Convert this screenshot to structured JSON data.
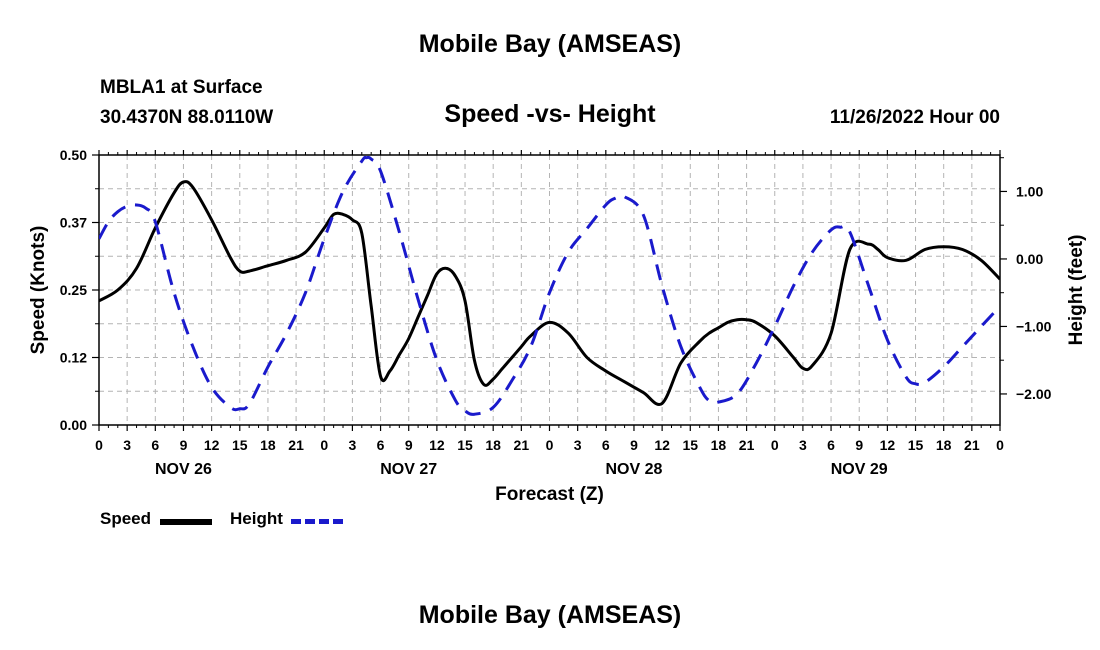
{
  "header": {
    "title_top": "Mobile Bay (AMSEAS)",
    "station": "MBLA1 at Surface",
    "coords": "30.4370N  88.0110W",
    "subtitle": "Speed -vs- Height",
    "datetime": "11/26/2022 Hour 00",
    "title_bottom": "Mobile Bay (AMSEAS)"
  },
  "legend": {
    "speed_label": "Speed",
    "height_label": "Height"
  },
  "colors": {
    "speed": "#000000",
    "height": "#1a1acc",
    "grid": "#b4b4b4"
  },
  "chart_data": {
    "type": "line",
    "title": "Speed -vs- Height",
    "xlabel": "Forecast (Z)",
    "ylabel": "Speed (Knots)",
    "y2label": "Height (feet)",
    "xlim": [
      0,
      96
    ],
    "ylim": [
      0,
      0.5
    ],
    "y2lim": [
      -2.46,
      1.54
    ],
    "x_ticks": [
      0,
      3,
      6,
      9,
      12,
      15,
      18,
      21,
      24,
      27,
      30,
      33,
      36,
      39,
      42,
      45,
      48,
      51,
      54,
      57,
      60,
      63,
      66,
      69,
      72,
      75,
      78,
      81,
      84,
      87,
      90,
      93,
      96
    ],
    "x_tick_labels": [
      "0",
      "3",
      "6",
      "9",
      "12",
      "15",
      "18",
      "21",
      "0",
      "3",
      "6",
      "9",
      "12",
      "15",
      "18",
      "21",
      "0",
      "3",
      "6",
      "9",
      "12",
      "15",
      "18",
      "21",
      "0",
      "3",
      "6",
      "9",
      "12",
      "15",
      "18",
      "21",
      "0"
    ],
    "day_labels": [
      {
        "x": 9,
        "label": "NOV 26"
      },
      {
        "x": 33,
        "label": "NOV 27"
      },
      {
        "x": 57,
        "label": "NOV 28"
      },
      {
        "x": 81,
        "label": "NOV 29"
      }
    ],
    "y_ticks": [
      0,
      0.125,
      0.25,
      0.375,
      0.5
    ],
    "y_tick_labels": [
      "0.00",
      "0.12",
      "0.25",
      "0.37",
      "0.50"
    ],
    "y2_ticks": [
      1,
      0,
      -1,
      -2
    ],
    "y2_tick_labels": [
      "1.00",
      "0.00",
      "−1.00",
      "−2.00"
    ],
    "grid": true,
    "legend_position": "bottom-left",
    "series": [
      {
        "name": "Speed",
        "axis": "left",
        "style": "solid",
        "x": [
          0,
          2,
          4,
          6,
          8,
          9,
          10,
          12,
          14,
          15,
          16,
          18,
          20,
          22,
          24,
          25,
          26,
          27,
          28,
          29,
          30,
          31,
          32,
          33,
          34,
          35,
          36,
          37,
          38,
          39,
          40,
          41,
          42,
          43,
          44,
          45,
          46,
          48,
          50,
          52,
          54,
          56,
          58,
          60,
          62,
          64,
          65,
          66,
          67,
          68,
          69,
          70,
          72,
          74,
          75,
          76,
          78,
          80,
          82,
          83,
          84,
          86,
          88,
          90,
          92,
          94,
          96
        ],
        "values": [
          0.23,
          0.25,
          0.29,
          0.365,
          0.43,
          0.45,
          0.44,
          0.38,
          0.31,
          0.285,
          0.285,
          0.295,
          0.305,
          0.32,
          0.365,
          0.39,
          0.39,
          0.38,
          0.355,
          0.22,
          0.09,
          0.1,
          0.13,
          0.16,
          0.2,
          0.24,
          0.28,
          0.29,
          0.275,
          0.23,
          0.12,
          0.075,
          0.085,
          0.105,
          0.125,
          0.145,
          0.165,
          0.19,
          0.17,
          0.125,
          0.1,
          0.08,
          0.06,
          0.04,
          0.115,
          0.155,
          0.17,
          0.18,
          0.19,
          0.195,
          0.195,
          0.19,
          0.165,
          0.125,
          0.105,
          0.11,
          0.17,
          0.325,
          0.335,
          0.325,
          0.31,
          0.305,
          0.325,
          0.33,
          0.325,
          0.305,
          0.27
        ]
      },
      {
        "name": "Height",
        "axis": "right",
        "style": "dashed",
        "x": [
          0,
          1,
          2,
          3,
          4,
          5,
          6,
          8,
          10,
          12,
          14,
          15,
          16,
          18,
          20,
          22,
          24,
          26,
          28,
          28.5,
          29,
          30,
          32,
          34,
          36,
          38,
          39,
          40,
          42,
          44,
          46,
          48,
          50,
          52,
          54,
          55,
          56,
          58,
          60,
          62,
          64,
          65,
          66,
          68,
          70,
          72,
          74,
          76,
          78,
          79,
          80,
          82,
          84,
          86,
          87,
          88,
          90,
          92,
          94,
          96
        ],
        "values": [
          0.3,
          0.55,
          0.7,
          0.78,
          0.8,
          0.75,
          0.55,
          -0.5,
          -1.3,
          -1.9,
          -2.2,
          -2.22,
          -2.15,
          -1.6,
          -1.1,
          -0.5,
          0.3,
          1.0,
          1.45,
          1.5,
          1.48,
          1.3,
          0.4,
          -0.6,
          -1.5,
          -2.1,
          -2.25,
          -2.3,
          -2.2,
          -1.8,
          -1.3,
          -0.5,
          0.1,
          0.45,
          0.8,
          0.9,
          0.92,
          0.65,
          -0.4,
          -1.3,
          -1.9,
          -2.1,
          -2.12,
          -2.0,
          -1.55,
          -1.0,
          -0.4,
          0.1,
          0.43,
          0.47,
          0.4,
          -0.4,
          -1.2,
          -1.75,
          -1.85,
          -1.83,
          -1.6,
          -1.3,
          -1.0,
          -0.7
        ]
      }
    ]
  }
}
